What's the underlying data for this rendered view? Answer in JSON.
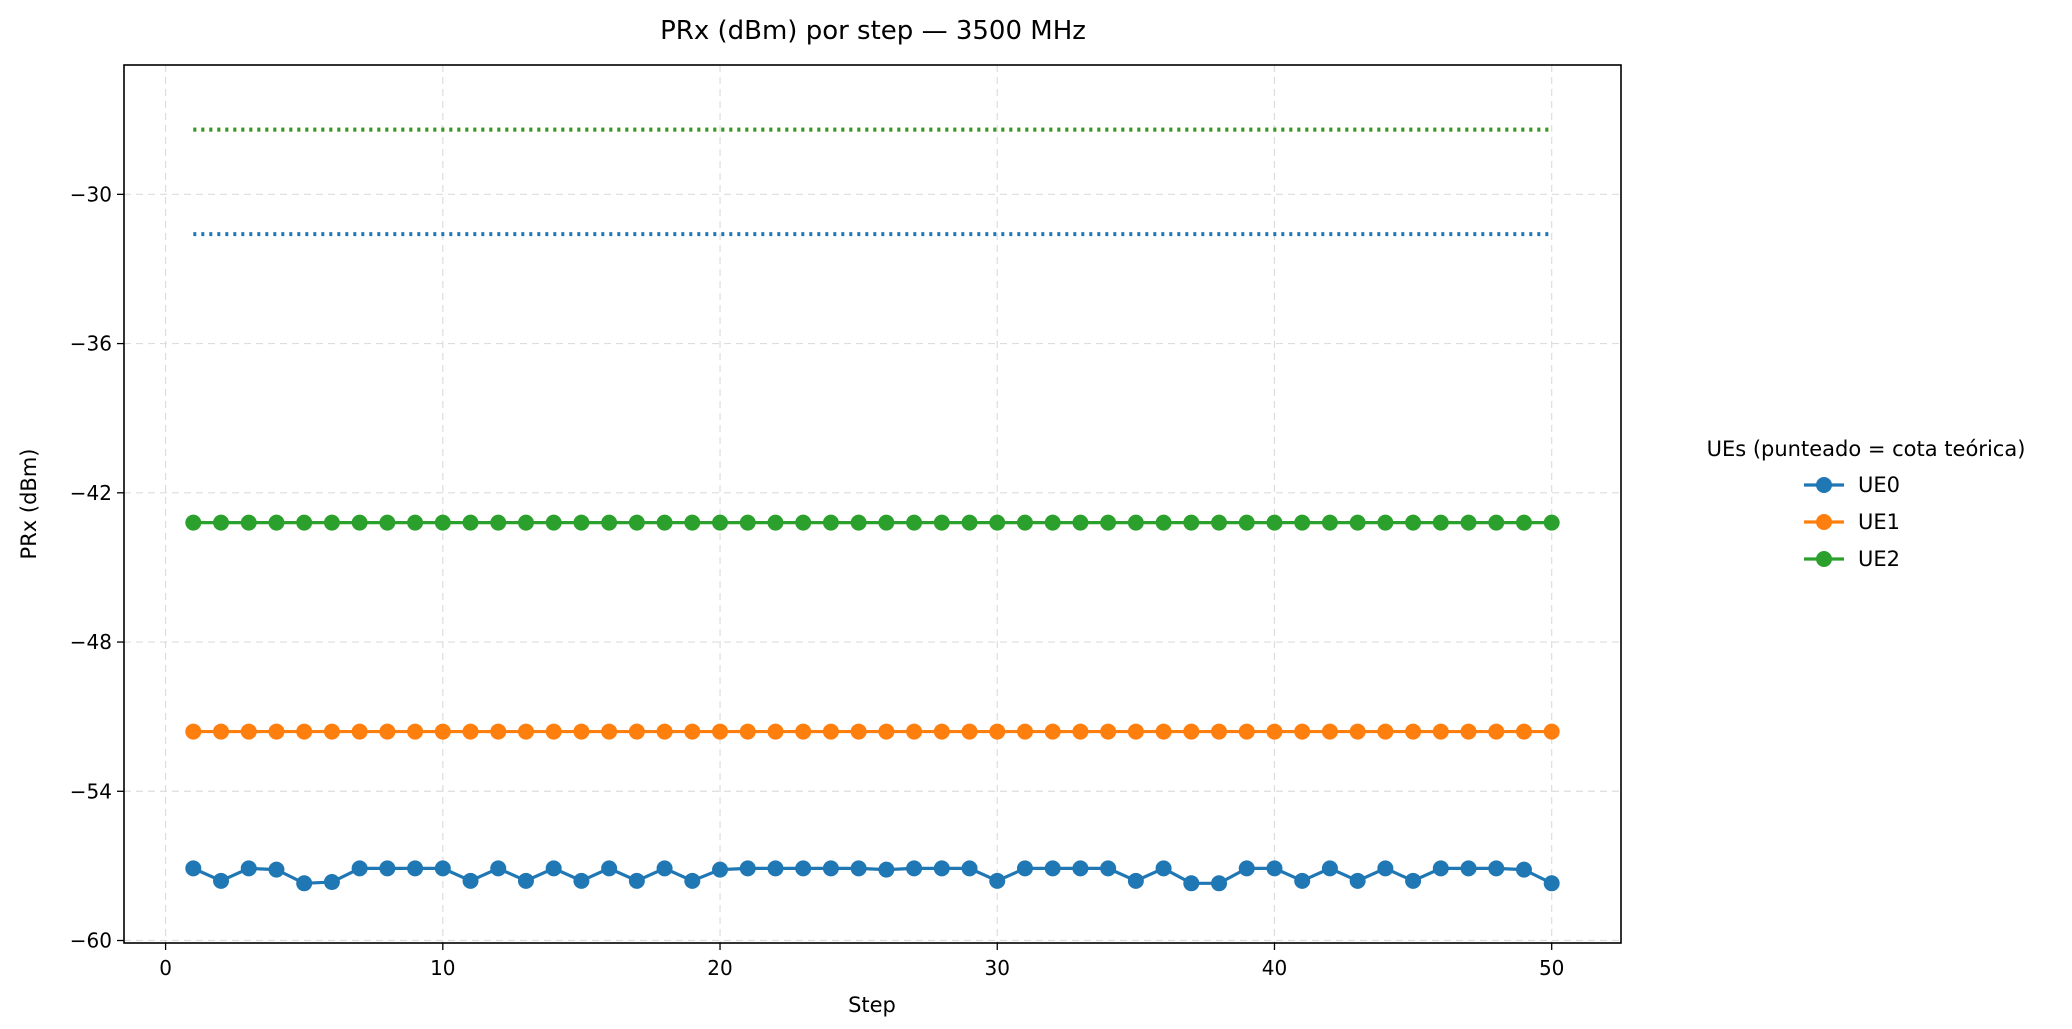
{
  "chart_data": {
    "type": "line",
    "title": "PRx (dBm) por step — 3500 MHz",
    "xlabel": "Step",
    "ylabel": "PRx (dBm)",
    "xlim": [
      -1.5,
      52.5
    ],
    "ylim": [
      -60.1,
      -24.8
    ],
    "xticks": [
      0,
      10,
      20,
      30,
      40,
      50
    ],
    "yticks": [
      -60,
      -54,
      -48,
      -42,
      -36,
      -30
    ],
    "grid": true,
    "legend": {
      "title": "UEs (punteado = cota teórica)",
      "placement": "right-outside",
      "entries": [
        "UE0",
        "UE1",
        "UE2"
      ]
    },
    "x": [
      1,
      2,
      3,
      4,
      5,
      6,
      7,
      8,
      9,
      10,
      11,
      12,
      13,
      14,
      15,
      16,
      17,
      18,
      19,
      20,
      21,
      22,
      23,
      24,
      25,
      26,
      27,
      28,
      29,
      30,
      31,
      32,
      33,
      34,
      35,
      36,
      37,
      38,
      39,
      40,
      41,
      42,
      43,
      44,
      45,
      46,
      47,
      48,
      49,
      50
    ],
    "series": [
      {
        "name": "UE0",
        "color": "#1f77b4",
        "bound": -31.6,
        "values": [
          -57.1,
          -57.6,
          -57.1,
          -57.15,
          -57.7,
          -57.65,
          -57.1,
          -57.1,
          -57.1,
          -57.1,
          -57.6,
          -57.1,
          -57.6,
          -57.1,
          -57.6,
          -57.1,
          -57.6,
          -57.1,
          -57.6,
          -57.15,
          -57.1,
          -57.1,
          -57.1,
          -57.1,
          -57.1,
          -57.15,
          -57.1,
          -57.1,
          -57.1,
          -57.6,
          -57.1,
          -57.1,
          -57.1,
          -57.1,
          -57.6,
          -57.1,
          -57.7,
          -57.7,
          -57.1,
          -57.1,
          -57.6,
          -57.1,
          -57.6,
          -57.1,
          -57.6,
          -57.1,
          -57.1,
          -57.1,
          -57.15,
          -57.7
        ]
      },
      {
        "name": "UE1",
        "color": "#ff7f0e",
        "bound": -27.4,
        "values": [
          -51.6,
          -51.6,
          -51.6,
          -51.6,
          -51.6,
          -51.6,
          -51.6,
          -51.6,
          -51.6,
          -51.6,
          -51.6,
          -51.6,
          -51.6,
          -51.6,
          -51.6,
          -51.6,
          -51.6,
          -51.6,
          -51.6,
          -51.6,
          -51.6,
          -51.6,
          -51.6,
          -51.6,
          -51.6,
          -51.6,
          -51.6,
          -51.6,
          -51.6,
          -51.6,
          -51.6,
          -51.6,
          -51.6,
          -51.6,
          -51.6,
          -51.6,
          -51.6,
          -51.6,
          -51.6,
          -51.6,
          -51.6,
          -51.6,
          -51.6,
          -51.6,
          -51.6,
          -51.6,
          -51.6,
          -51.6,
          -51.6,
          -51.6
        ]
      },
      {
        "name": "UE2",
        "color": "#2ca02c",
        "bound": -27.4,
        "values": [
          -43.2,
          -43.2,
          -43.2,
          -43.2,
          -43.2,
          -43.2,
          -43.2,
          -43.2,
          -43.2,
          -43.2,
          -43.2,
          -43.2,
          -43.2,
          -43.2,
          -43.2,
          -43.2,
          -43.2,
          -43.2,
          -43.2,
          -43.2,
          -43.2,
          -43.2,
          -43.2,
          -43.2,
          -43.2,
          -43.2,
          -43.2,
          -43.2,
          -43.2,
          -43.2,
          -43.2,
          -43.2,
          -43.2,
          -43.2,
          -43.2,
          -43.2,
          -43.2,
          -43.2,
          -43.2,
          -43.2,
          -43.2,
          -43.2,
          -43.2,
          -43.2,
          -43.2,
          -43.2,
          -43.2,
          -43.2,
          -43.2,
          -43.2
        ]
      }
    ]
  }
}
